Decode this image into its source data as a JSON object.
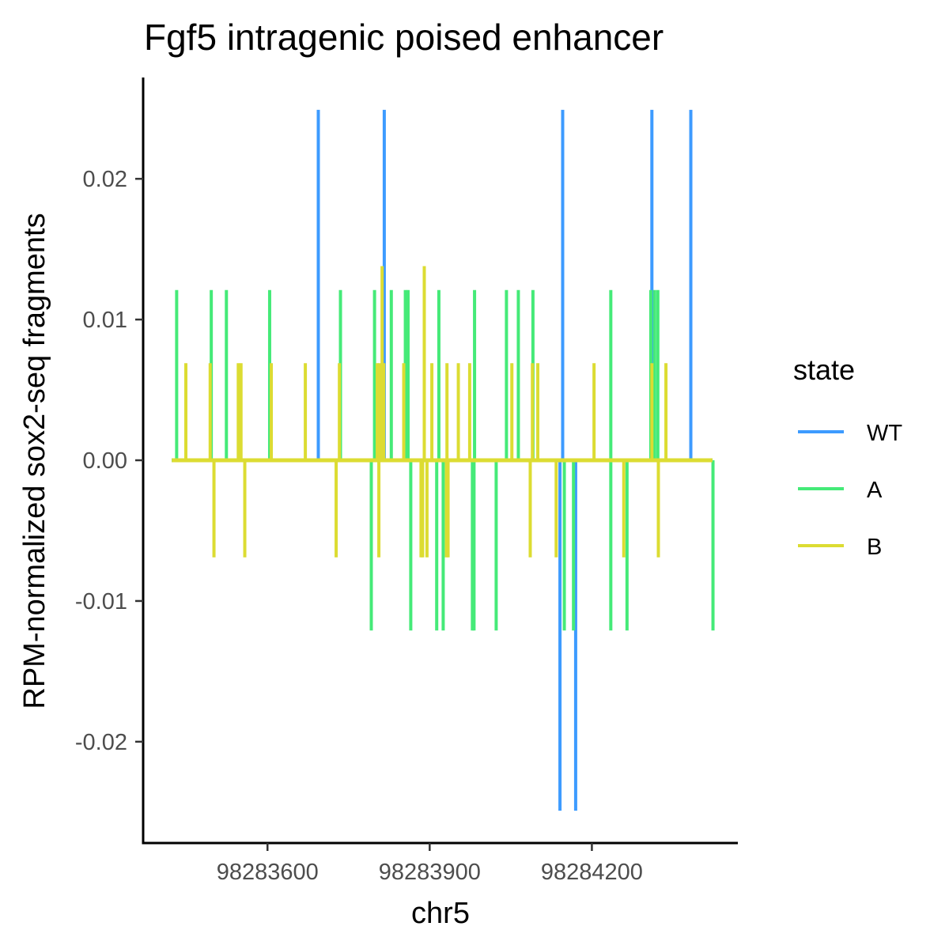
{
  "chart_data": {
    "type": "line",
    "title": "Fgf5 intragenic poised enhancer",
    "xlabel": "chr5",
    "ylabel": "RPM-normalized sox2-seq fragments",
    "xlim": [
      98283370,
      98284470
    ],
    "ylim": [
      -0.0272,
      0.0272
    ],
    "x_ticks": [
      98283600,
      98283900,
      98284200
    ],
    "x_tick_labels": [
      "98283600",
      "98283900",
      "98284200"
    ],
    "y_ticks": [
      0.02,
      0.01,
      0.0,
      -0.01,
      -0.02
    ],
    "y_tick_labels": [
      "0.02",
      "0.01",
      "0.00",
      "-0.01",
      "-0.02"
    ],
    "grid": false,
    "legend": {
      "title": "state",
      "position": "right"
    },
    "baseline_range": [
      98283423,
      98284423
    ],
    "series": [
      {
        "name": "WT",
        "color": "#3d9bff",
        "stems": [
          {
            "x": 98283694,
            "y": 0.0249
          },
          {
            "x": 98283816,
            "y": 0.0249
          },
          {
            "x": 98284146,
            "y": 0.0249
          },
          {
            "x": 98284311,
            "y": 0.0249
          },
          {
            "x": 98284383,
            "y": 0.0249
          },
          {
            "x": 98284141,
            "y": -0.0249
          },
          {
            "x": 98284170,
            "y": -0.0249
          }
        ]
      },
      {
        "name": "A",
        "color": "#45ea78",
        "stems": [
          {
            "x": 98283432,
            "y": 0.0121
          },
          {
            "x": 98283496,
            "y": 0.0121
          },
          {
            "x": 98283524,
            "y": 0.0121
          },
          {
            "x": 98283604,
            "y": 0.0121
          },
          {
            "x": 98283735,
            "y": 0.0121
          },
          {
            "x": 98283798,
            "y": 0.0121
          },
          {
            "x": 98283829,
            "y": 0.0121
          },
          {
            "x": 98283855,
            "y": 0.0121
          },
          {
            "x": 98283860,
            "y": 0.0121
          },
          {
            "x": 98283917,
            "y": 0.0121
          },
          {
            "x": 98283983,
            "y": 0.0121
          },
          {
            "x": 98284042,
            "y": 0.0121
          },
          {
            "x": 98284064,
            "y": 0.0121
          },
          {
            "x": 98284091,
            "y": 0.0121
          },
          {
            "x": 98284235,
            "y": 0.0121
          },
          {
            "x": 98284309,
            "y": 0.0121
          },
          {
            "x": 98284316,
            "y": 0.0121
          },
          {
            "x": 98284322,
            "y": 0.0121
          },
          {
            "x": 98283792,
            "y": -0.0121
          },
          {
            "x": 98283865,
            "y": -0.0121
          },
          {
            "x": 98283913,
            "y": -0.0121
          },
          {
            "x": 98283925,
            "y": -0.0121
          },
          {
            "x": 98283979,
            "y": -0.0121
          },
          {
            "x": 98283982,
            "y": -0.0121
          },
          {
            "x": 98284023,
            "y": -0.0121
          },
          {
            "x": 98284149,
            "y": -0.0121
          },
          {
            "x": 98284166,
            "y": -0.0121
          },
          {
            "x": 98284235,
            "y": -0.0121
          },
          {
            "x": 98284265,
            "y": -0.0121
          },
          {
            "x": 98284424,
            "y": -0.0121
          }
        ]
      },
      {
        "name": "B",
        "color": "#dcdc32",
        "stems": [
          {
            "x": 98283449,
            "y": 0.0069
          },
          {
            "x": 98283494,
            "y": 0.0069
          },
          {
            "x": 98283546,
            "y": 0.0069
          },
          {
            "x": 98283551,
            "y": 0.0069
          },
          {
            "x": 98283607,
            "y": 0.0069
          },
          {
            "x": 98283670,
            "y": 0.0069
          },
          {
            "x": 98283733,
            "y": 0.0069
          },
          {
            "x": 98283803,
            "y": 0.0069
          },
          {
            "x": 98283807,
            "y": 0.0069
          },
          {
            "x": 98283812,
            "y": 0.0138
          },
          {
            "x": 98283815,
            "y": 0.0069
          },
          {
            "x": 98283852,
            "y": 0.0069
          },
          {
            "x": 98283890,
            "y": 0.0138
          },
          {
            "x": 98283904,
            "y": 0.0069
          },
          {
            "x": 98283932,
            "y": 0.0069
          },
          {
            "x": 98283953,
            "y": 0.0069
          },
          {
            "x": 98283974,
            "y": 0.0069
          },
          {
            "x": 98284052,
            "y": 0.0069
          },
          {
            "x": 98284090,
            "y": 0.0069
          },
          {
            "x": 98284100,
            "y": 0.0069
          },
          {
            "x": 98284204,
            "y": 0.0069
          },
          {
            "x": 98284311,
            "y": 0.0069
          },
          {
            "x": 98284337,
            "y": 0.0069
          },
          {
            "x": 98283501,
            "y": -0.0069
          },
          {
            "x": 98283558,
            "y": -0.0069
          },
          {
            "x": 98283727,
            "y": -0.0069
          },
          {
            "x": 98283806,
            "y": -0.0069
          },
          {
            "x": 98283884,
            "y": -0.0069
          },
          {
            "x": 98283887,
            "y": -0.0069
          },
          {
            "x": 98283895,
            "y": -0.0069
          },
          {
            "x": 98283931,
            "y": -0.0069
          },
          {
            "x": 98283934,
            "y": -0.0069
          },
          {
            "x": 98284086,
            "y": -0.0069
          },
          {
            "x": 98284134,
            "y": -0.0069
          },
          {
            "x": 98284259,
            "y": -0.0069
          },
          {
            "x": 98284323,
            "y": -0.0069
          }
        ]
      }
    ]
  }
}
